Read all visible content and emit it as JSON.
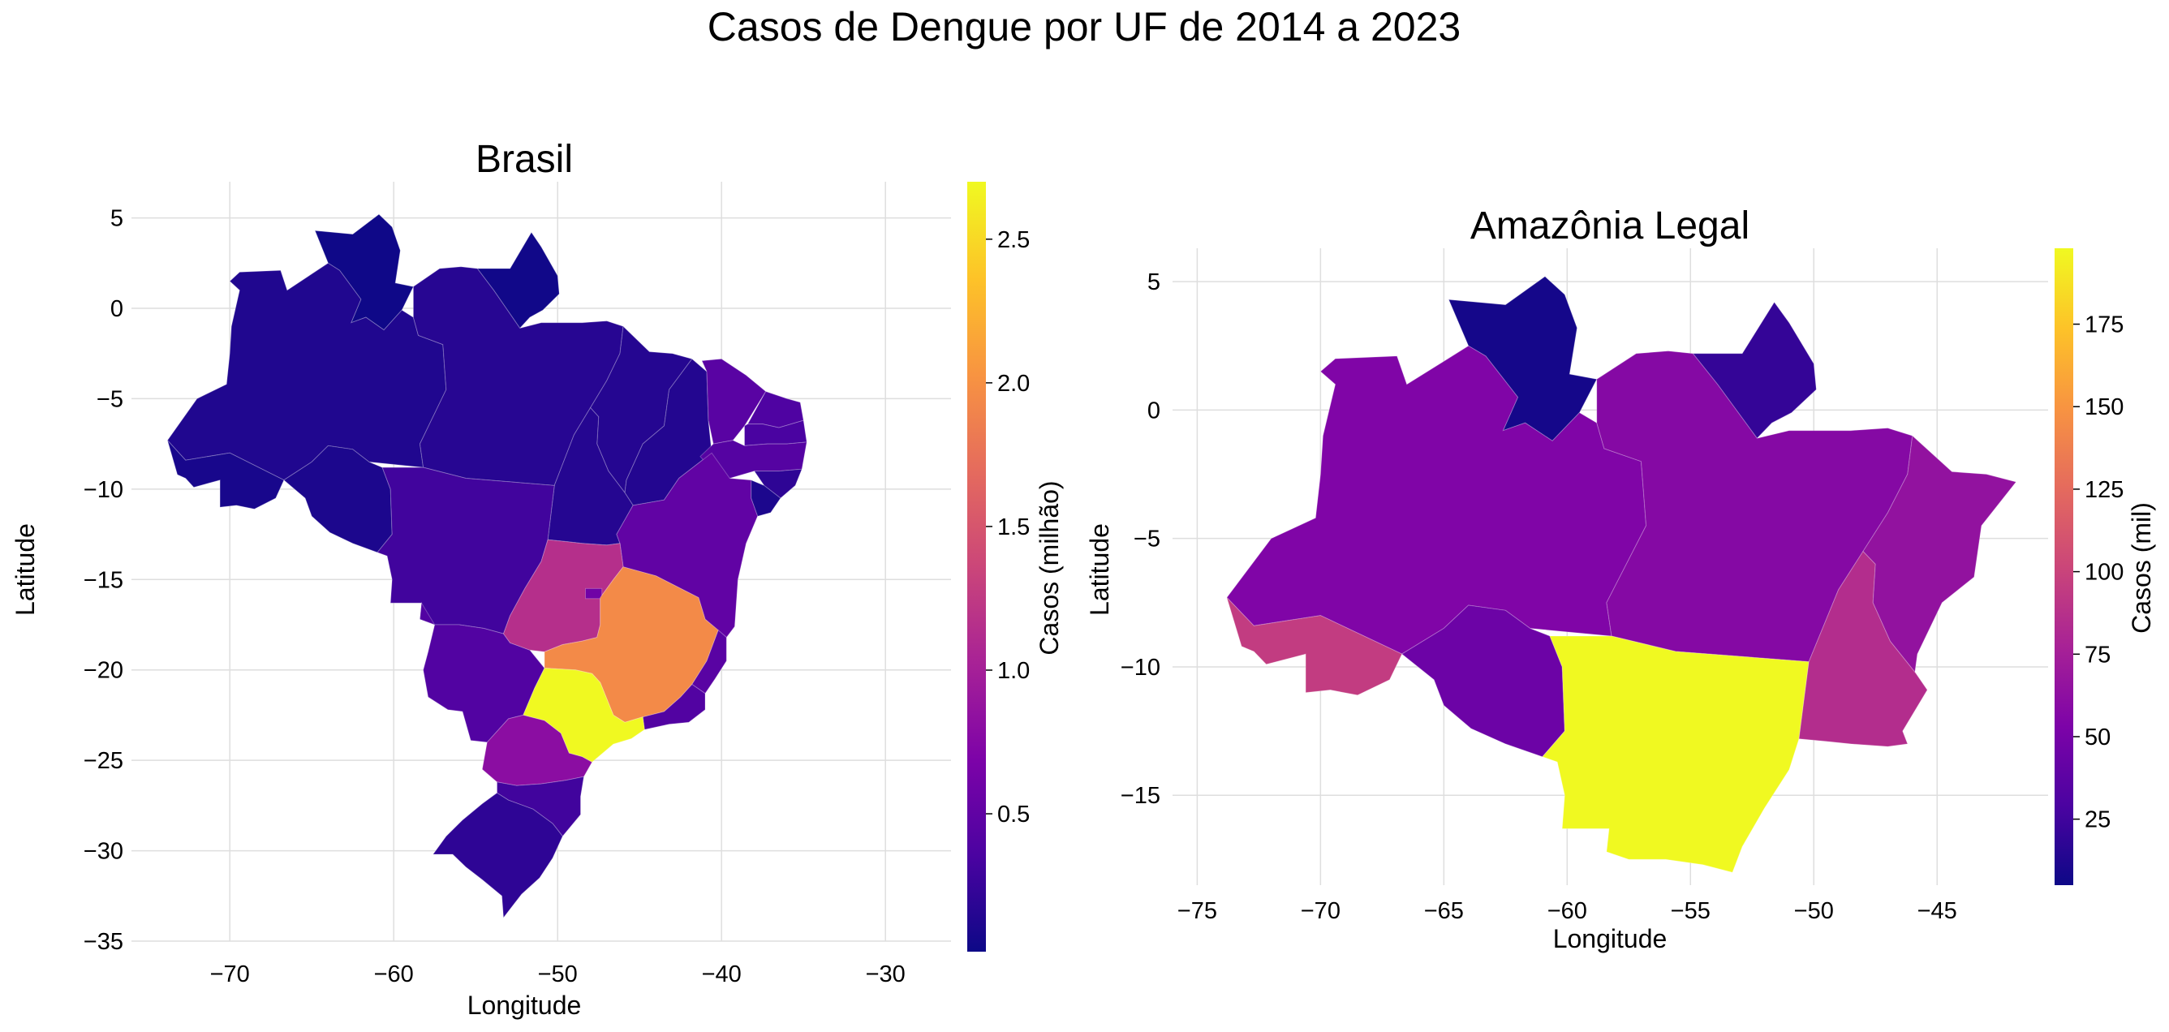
{
  "figure": {
    "title": "Casos de Dengue por UF de 2014 a 2023"
  },
  "chart_data": [
    {
      "type": "map",
      "title": "Brasil",
      "xlabel": "Longitude",
      "ylabel": "Latitude",
      "xlim": [
        -76,
        -26
      ],
      "ylim": [
        -35,
        7
      ],
      "xticks": [
        -70,
        -60,
        -50,
        -40,
        -30
      ],
      "yticks": [
        5,
        0,
        -5,
        -10,
        -15,
        -20,
        -25,
        -30,
        -35
      ],
      "grid": true,
      "colormap": "plasma",
      "colorbar": {
        "label": "Casos (milhão)",
        "min": 0.02,
        "max": 2.7,
        "ticks": [
          0.5,
          1.0,
          1.5,
          2.0,
          2.5
        ]
      },
      "regions": [
        {
          "name": "RR",
          "value": 0.03
        },
        {
          "name": "AP",
          "value": 0.04
        },
        {
          "name": "AM",
          "value": 0.12
        },
        {
          "name": "PA",
          "value": 0.16
        },
        {
          "name": "AC",
          "value": 0.08
        },
        {
          "name": "RO",
          "value": 0.1
        },
        {
          "name": "MA",
          "value": 0.15
        },
        {
          "name": "PI",
          "value": 0.14
        },
        {
          "name": "CE",
          "value": 0.45
        },
        {
          "name": "RN",
          "value": 0.38
        },
        {
          "name": "PB",
          "value": 0.35
        },
        {
          "name": "PE",
          "value": 0.42
        },
        {
          "name": "AL",
          "value": 0.2
        },
        {
          "name": "SE",
          "value": 0.1
        },
        {
          "name": "TO",
          "value": 0.15
        },
        {
          "name": "BA",
          "value": 0.5
        },
        {
          "name": "MT",
          "value": 0.3
        },
        {
          "name": "MS",
          "value": 0.4
        },
        {
          "name": "GO",
          "value": 1.15
        },
        {
          "name": "DF",
          "value": 0.6
        },
        {
          "name": "MG",
          "value": 1.95
        },
        {
          "name": "ES",
          "value": 0.45
        },
        {
          "name": "RJ",
          "value": 0.4
        },
        {
          "name": "SP",
          "value": 2.7
        },
        {
          "name": "PR",
          "value": 0.8
        },
        {
          "name": "SC",
          "value": 0.3
        },
        {
          "name": "RS",
          "value": 0.2
        }
      ]
    },
    {
      "type": "map",
      "title": "Amazônia Legal",
      "xlabel": "Longitude",
      "ylabel": "Latitude",
      "xlim": [
        -76,
        -40.5
      ],
      "ylim": [
        -18.5,
        6.3
      ],
      "xticks": [
        -75,
        -70,
        -65,
        -60,
        -55,
        -50,
        -45
      ],
      "yticks": [
        5,
        0,
        -5,
        -10,
        -15
      ],
      "grid": true,
      "colormap": "plasma",
      "colorbar": {
        "label": "Casos (mil)",
        "min": 5,
        "max": 198,
        "ticks": [
          25,
          50,
          75,
          100,
          125,
          150,
          175
        ]
      },
      "regions": [
        {
          "name": "RR",
          "value": 8
        },
        {
          "name": "AP",
          "value": 20
        },
        {
          "name": "AM",
          "value": 55
        },
        {
          "name": "PA",
          "value": 58
        },
        {
          "name": "AC",
          "value": 95
        },
        {
          "name": "RO",
          "value": 45
        },
        {
          "name": "MT",
          "value": 198
        },
        {
          "name": "TO",
          "value": 85
        },
        {
          "name": "MA",
          "value": 65
        }
      ]
    }
  ]
}
